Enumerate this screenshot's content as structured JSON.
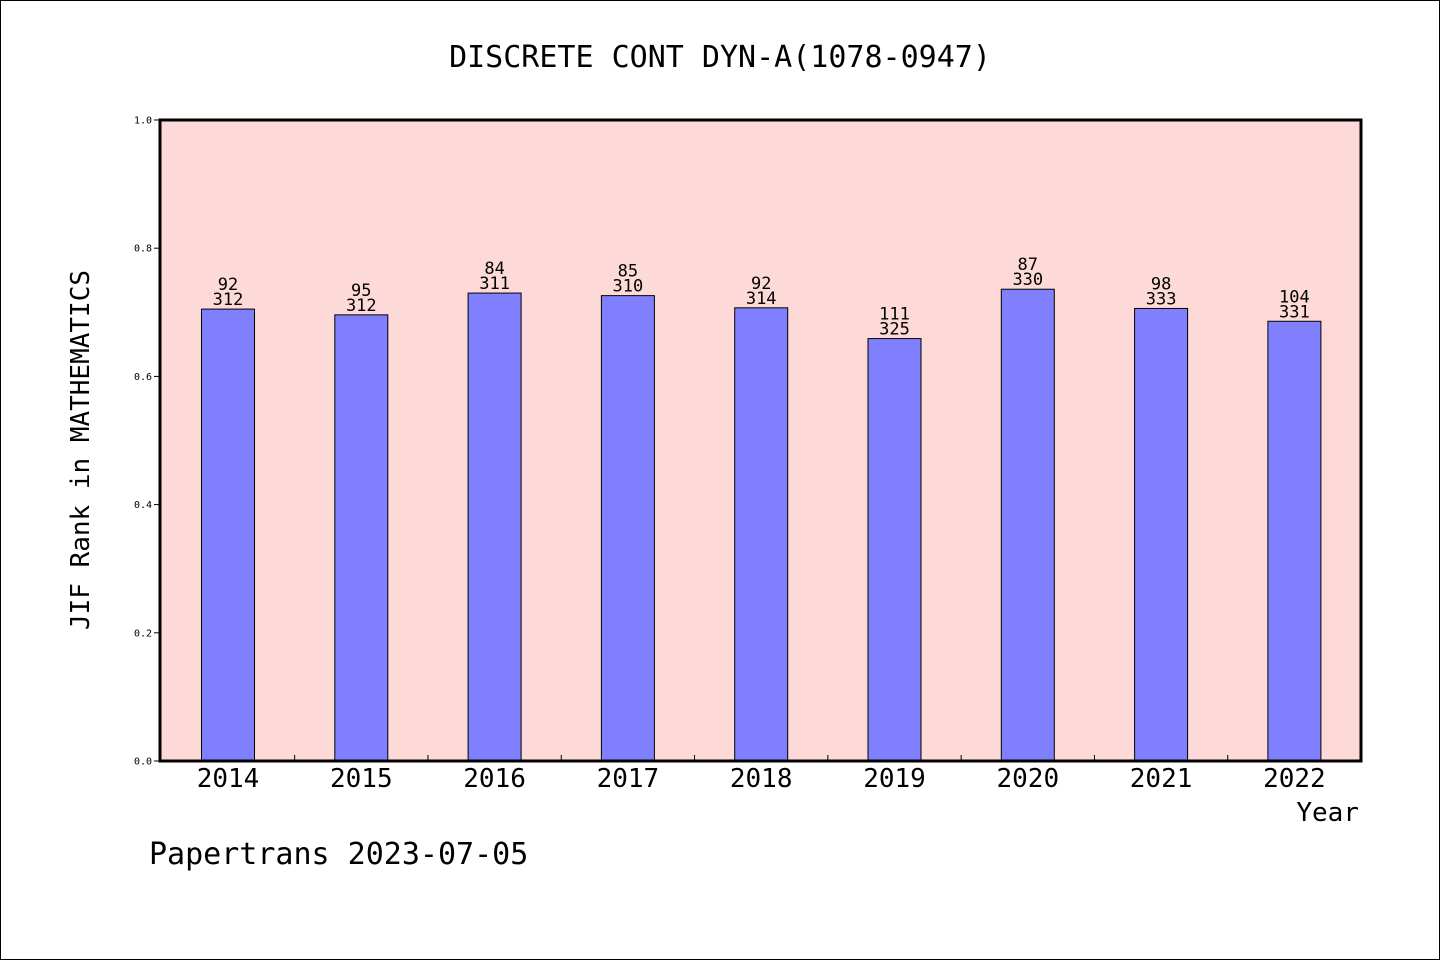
{
  "chart_data": {
    "type": "bar",
    "title": "DISCRETE CONT DYN-A(1078-0947)",
    "xlabel": "Year",
    "ylabel": "JIF Rank in MATHEMATICS",
    "ylim": [
      0.0,
      1.0
    ],
    "yticks": [
      "0.0",
      "0.2",
      "0.4",
      "0.6",
      "0.8",
      "1.0"
    ],
    "categories": [
      "2014",
      "2015",
      "2016",
      "2017",
      "2018",
      "2019",
      "2020",
      "2021",
      "2022"
    ],
    "values": [
      0.705,
      0.696,
      0.73,
      0.726,
      0.707,
      0.659,
      0.736,
      0.706,
      0.686
    ],
    "ranks": [
      "92",
      "95",
      "84",
      "85",
      "92",
      "111",
      "87",
      "98",
      "104"
    ],
    "totals": [
      "312",
      "312",
      "311",
      "310",
      "314",
      "325",
      "330",
      "333",
      "331"
    ],
    "grid": false,
    "colors": {
      "plot_background": "#fddad8",
      "bar_fill": "#8080ff",
      "bar_edge": "#000000"
    }
  },
  "footer": {
    "source": "Papertrans 2023-07-05"
  }
}
